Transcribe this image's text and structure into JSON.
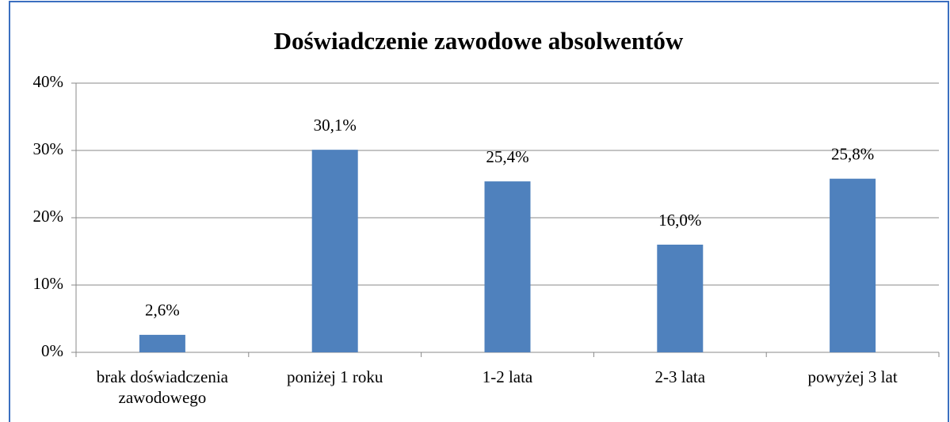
{
  "chart_data": {
    "type": "bar",
    "title": "Doświadczenie zawodowe absolwentów",
    "categories": [
      "brak doświadczenia zawodowego",
      "poniżej 1 roku",
      "1-2 lata",
      "2-3 lata",
      "powyżej 3 lat"
    ],
    "values": [
      2.6,
      30.1,
      25.4,
      16.0,
      25.8
    ],
    "value_labels": [
      "2,6%",
      "30,1%",
      "25,4%",
      "16,0%",
      "25,8%"
    ],
    "color": "#4f81bd",
    "ylim": [
      0,
      40
    ],
    "yticks": [
      {
        "value": 0,
        "label": "0%"
      },
      {
        "value": 10,
        "label": "10%"
      },
      {
        "value": 20,
        "label": "20%"
      },
      {
        "value": 30,
        "label": "30%"
      },
      {
        "value": 40,
        "label": "40%"
      }
    ],
    "grid": true
  }
}
